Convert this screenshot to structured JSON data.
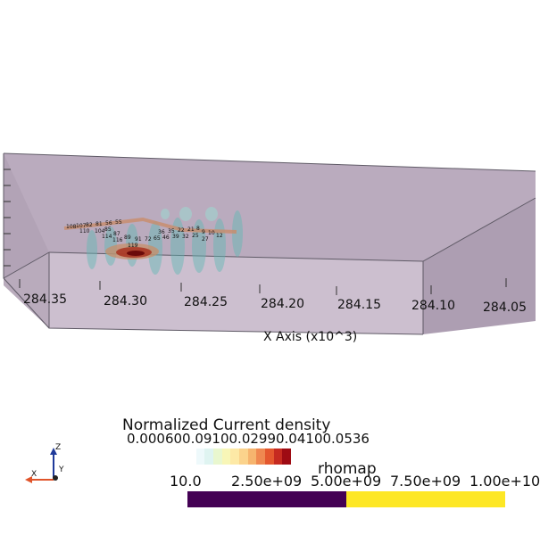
{
  "colors": {
    "box_fill": "#b7a8bb",
    "box_edge": "#5a5560",
    "rho_low": "#440154",
    "rho_high": "#fde725",
    "cd_ramp": [
      "#ffffff",
      "#eef9fb",
      "#dff4f1",
      "#e9f7cf",
      "#f8f6b7",
      "#fde9a6",
      "#fbd38c",
      "#f6b46e",
      "#ef8850",
      "#e4572e",
      "#c62a20",
      "#9e0b13"
    ],
    "axis_x": "#e0542a",
    "axis_y": "#1f1f1f",
    "axis_z": "#1f3a9a"
  },
  "x_axis": {
    "title": "X Axis (x10^3)",
    "ticks": [
      "284.35",
      "284.30",
      "284.25",
      "284.20",
      "284.15",
      "284.10",
      "284.05"
    ]
  },
  "stations": {
    "labels": [
      "108",
      "107",
      "82",
      "81",
      "56",
      "55",
      "110",
      "104",
      "85",
      "114",
      "87",
      "116",
      "89",
      "91",
      "72",
      "65",
      "46",
      "39",
      "32",
      "25",
      "27",
      "119",
      "36",
      "35",
      "22",
      "21",
      "8",
      "9",
      "10",
      "12"
    ]
  },
  "current_density_legend": {
    "title": "Normalized Current density",
    "ticks_text": "0.000600.09100.02990.04100.0536"
  },
  "rho_legend": {
    "title": "rhomap",
    "ticks": [
      "10.0",
      "2.50e+09",
      "5.00e+09",
      "7.50e+09",
      "1.00e+10"
    ]
  },
  "orientation": {
    "x_label": "X",
    "y_label": "Y",
    "z_label": "Z"
  }
}
